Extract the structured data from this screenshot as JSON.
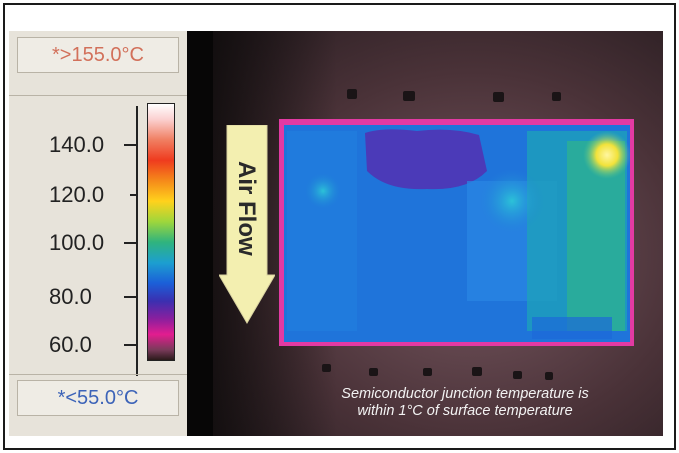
{
  "scale": {
    "max_readout": "*>155.0°C",
    "min_readout": "*<55.0°C",
    "ticks": [
      "140.0",
      "120.0",
      "100.0",
      "80.0",
      "60.0"
    ]
  },
  "arrow_label": "Air Flow",
  "caption": {
    "line1": "Semiconductor junction temperature is",
    "line2": "within 1°C of surface temperature"
  },
  "colors": {
    "frame": "#1a1a1a",
    "panel": "#e7e3da",
    "max_text": "#d2705a",
    "min_text": "#3c63b8",
    "arrow_fill": "#f3efb0"
  }
}
